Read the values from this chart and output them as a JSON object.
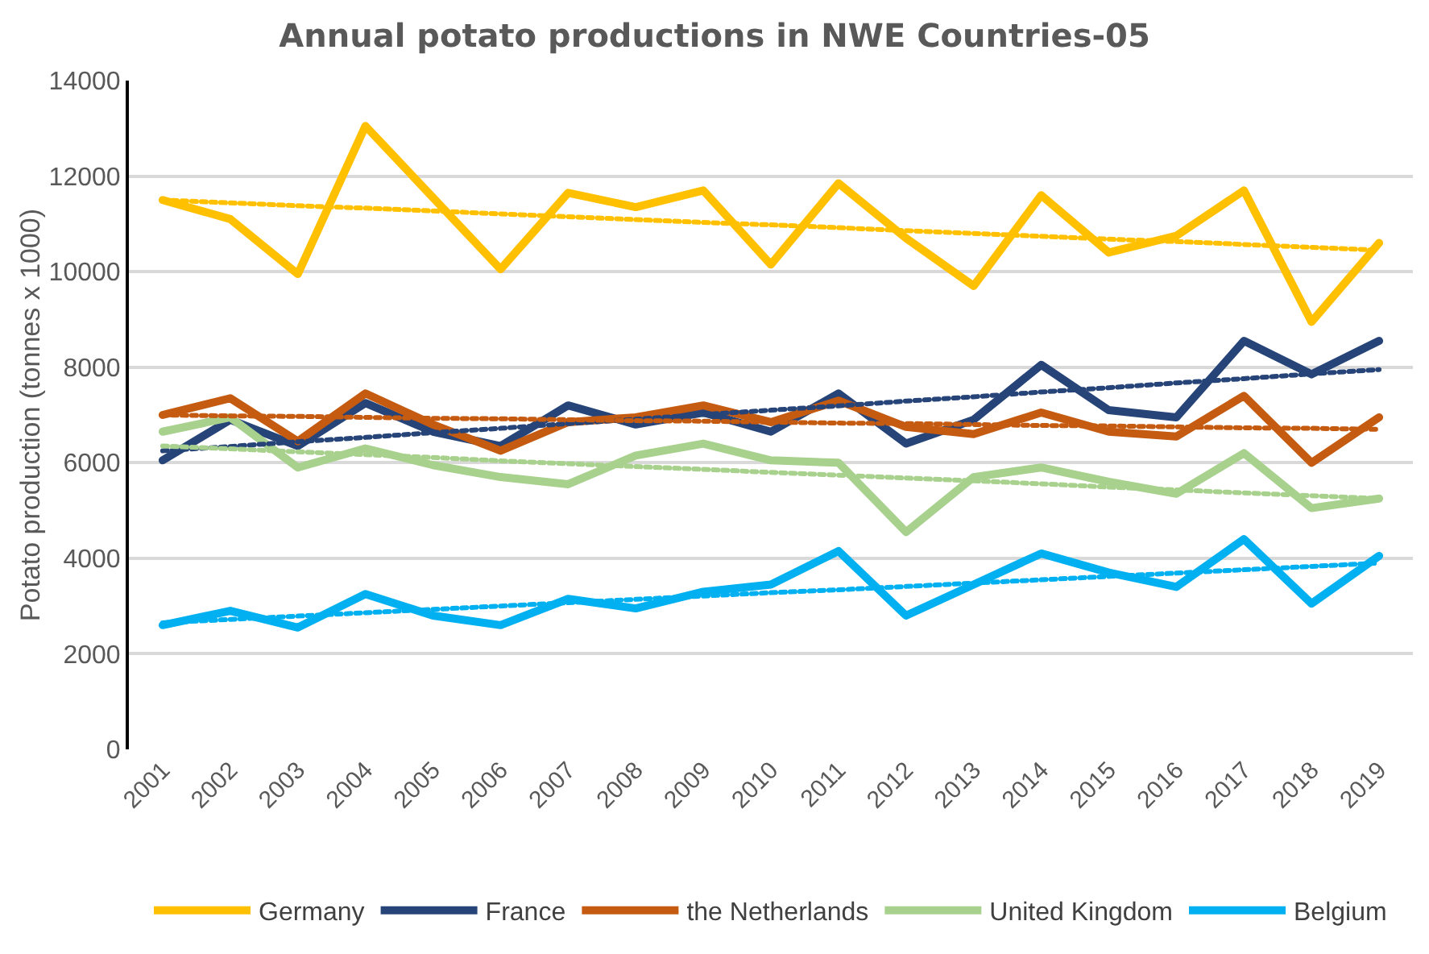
{
  "chart_data": {
    "type": "line",
    "title": "Annual potato productions in NWE Countries-05",
    "ylabel": "Potato production (tonnes x 1000)",
    "categories": [
      "2001",
      "2002",
      "2003",
      "2004",
      "2005",
      "2006",
      "2007",
      "2008",
      "2009",
      "2010",
      "2011",
      "2012",
      "2013",
      "2014",
      "2015",
      "2016",
      "2017",
      "2018",
      "2019"
    ],
    "series": [
      {
        "name": "Germany",
        "color": "#ffc000",
        "values": [
          11500,
          11100,
          9950,
          13050,
          11550,
          10050,
          11650,
          11350,
          11700,
          10150,
          11850,
          10700,
          9700,
          11600,
          10400,
          10750,
          11700,
          8950,
          10600
        ]
      },
      {
        "name": "France",
        "color": "#264478",
        "values": [
          6050,
          6900,
          6350,
          7250,
          6650,
          6350,
          7200,
          6800,
          7050,
          6650,
          7450,
          6400,
          6900,
          8050,
          7100,
          6950,
          8550,
          7850,
          8550
        ]
      },
      {
        "name": "the Netherlands",
        "color": "#c55a11",
        "values": [
          7000,
          7350,
          6450,
          7450,
          6800,
          6250,
          6850,
          6950,
          7200,
          6850,
          7300,
          6750,
          6600,
          7050,
          6650,
          6550,
          7400,
          6000,
          6950
        ]
      },
      {
        "name": "United Kingdom",
        "color": "#a9d18e",
        "values": [
          6650,
          6950,
          5900,
          6300,
          5950,
          5700,
          5550,
          6150,
          6400,
          6050,
          6000,
          4550,
          5700,
          5900,
          5600,
          5350,
          6200,
          5050,
          5250
        ]
      },
      {
        "name": "Belgium",
        "color": "#00b0f0",
        "values": [
          2600,
          2900,
          2550,
          3250,
          2800,
          2600,
          3150,
          2950,
          3300,
          3450,
          4150,
          2800,
          3450,
          4100,
          3700,
          3400,
          4400,
          3050,
          4050
        ]
      },
      {
        "color": "#ffc000",
        "line_style": "dotted",
        "values": [
          11500,
          11440,
          11380,
          11330,
          11270,
          11210,
          11150,
          11090,
          11030,
          10980,
          10920,
          10860,
          10800,
          10740,
          10680,
          10630,
          10570,
          10510,
          10450
        ]
      },
      {
        "color": "#264478",
        "line_style": "dotted",
        "values": [
          6250,
          6340,
          6440,
          6530,
          6630,
          6720,
          6820,
          6910,
          7010,
          7100,
          7190,
          7290,
          7380,
          7480,
          7570,
          7670,
          7760,
          7860,
          7950
        ]
      },
      {
        "color": "#c55a11",
        "line_style": "dotted",
        "values": [
          7000,
          6980,
          6970,
          6950,
          6930,
          6920,
          6900,
          6880,
          6870,
          6850,
          6830,
          6820,
          6800,
          6780,
          6770,
          6750,
          6730,
          6720,
          6700
        ]
      },
      {
        "color": "#a9d18e",
        "line_style": "dotted",
        "values": [
          6350,
          6290,
          6230,
          6170,
          6110,
          6040,
          5980,
          5920,
          5860,
          5800,
          5740,
          5680,
          5620,
          5560,
          5490,
          5430,
          5370,
          5310,
          5250
        ]
      },
      {
        "color": "#00b0f0",
        "line_style": "dotted",
        "values": [
          2650,
          2720,
          2790,
          2860,
          2930,
          3000,
          3070,
          3140,
          3210,
          3280,
          3340,
          3410,
          3480,
          3550,
          3620,
          3690,
          3760,
          3830,
          3900
        ]
      }
    ],
    "ylim": [
      0,
      14000
    ],
    "yticks": [
      0,
      2000,
      4000,
      6000,
      8000,
      10000,
      12000,
      14000
    ],
    "grid": "y",
    "legend": "bottom",
    "marker": "none",
    "line_style": "solid"
  }
}
